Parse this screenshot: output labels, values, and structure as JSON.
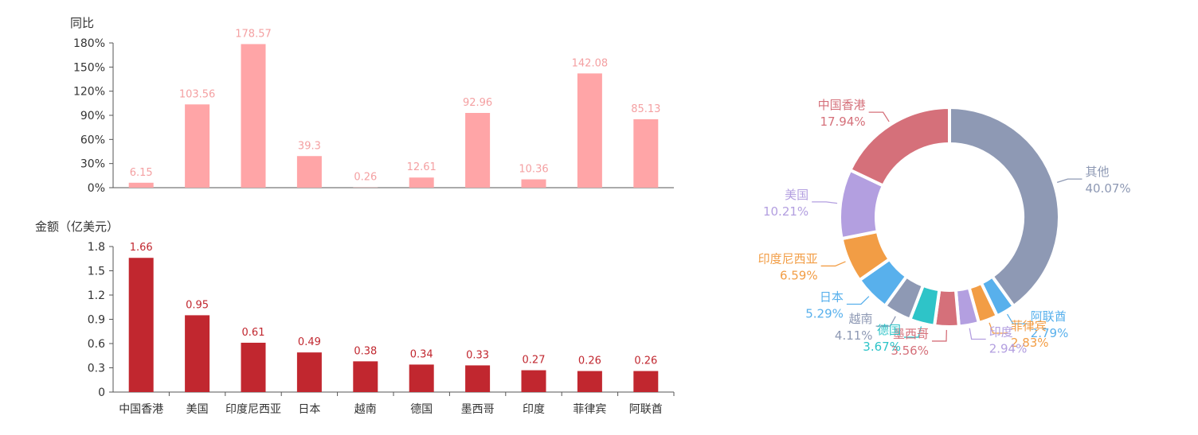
{
  "colors": {
    "yoy_bar": "#FFA5A7",
    "yoy_label": "#F4A0A2",
    "amount_bar": "#C1272F",
    "amount_label": "#C1272F",
    "axis": "#555555",
    "text": "#333333"
  },
  "chart_data": [
    {
      "type": "bar",
      "ylabel": "同比",
      "categories": [
        "中国香港",
        "美国",
        "印度尼西亚",
        "日本",
        "越南",
        "德国",
        "墨西哥",
        "印度",
        "菲律宾",
        "阿联酋"
      ],
      "values": [
        6.15,
        103.56,
        178.57,
        39.3,
        0.26,
        12.61,
        92.96,
        10.36,
        142.08,
        85.13
      ],
      "value_labels": [
        "6.15",
        "103.56",
        "178.57",
        "39.3",
        "0.26",
        "12.61",
        "92.96",
        "10.36",
        "142.08",
        "85.13"
      ],
      "ylim": [
        0,
        180
      ],
      "yticks": [
        0,
        30,
        60,
        90,
        120,
        150,
        180
      ],
      "ytick_labels": [
        "0%",
        "30%",
        "60%",
        "90%",
        "120%",
        "150%",
        "180%"
      ],
      "grid": false
    },
    {
      "type": "bar",
      "ylabel": "金额（亿美元）",
      "categories": [
        "中国香港",
        "美国",
        "印度尼西亚",
        "日本",
        "越南",
        "德国",
        "墨西哥",
        "印度",
        "菲律宾",
        "阿联酋"
      ],
      "values": [
        1.66,
        0.95,
        0.61,
        0.49,
        0.38,
        0.34,
        0.33,
        0.27,
        0.26,
        0.26
      ],
      "value_labels": [
        "1.66",
        "0.95",
        "0.61",
        "0.49",
        "0.38",
        "0.34",
        "0.33",
        "0.27",
        "0.26",
        "0.26"
      ],
      "ylim": [
        0,
        1.8
      ],
      "yticks": [
        0,
        0.3,
        0.6,
        0.9,
        1.2,
        1.5,
        1.8
      ],
      "ytick_labels": [
        "0",
        "0.3",
        "0.6",
        "0.9",
        "1.2",
        "1.5",
        "1.8"
      ],
      "grid": false
    },
    {
      "type": "pie",
      "donut": true,
      "slices": [
        {
          "label": "其他",
          "value": 40.07,
          "pct": "40.07%",
          "color": "#8E99B4"
        },
        {
          "label": "阿联酋",
          "value": 2.79,
          "pct": "2.79%",
          "color": "#58B0EC"
        },
        {
          "label": "菲律宾",
          "value": 2.83,
          "pct": "2.83%",
          "color": "#F29D45"
        },
        {
          "label": "印度",
          "value": 2.94,
          "pct": "2.94%",
          "color": "#B39FE0"
        },
        {
          "label": "墨西哥",
          "value": 3.56,
          "pct": "3.56%",
          "color": "#D5707A"
        },
        {
          "label": "德国",
          "value": 3.67,
          "pct": "3.67%",
          "color": "#2EC4C8"
        },
        {
          "label": "越南",
          "value": 4.11,
          "pct": "4.11%",
          "color": "#8E99B4"
        },
        {
          "label": "日本",
          "value": 5.29,
          "pct": "5.29%",
          "color": "#58B0EC"
        },
        {
          "label": "印度尼西亚",
          "value": 6.59,
          "pct": "6.59%",
          "color": "#F29D45"
        },
        {
          "label": "美国",
          "value": 10.21,
          "pct": "10.21%",
          "color": "#B39FE0"
        },
        {
          "label": "中国香港",
          "value": 17.94,
          "pct": "17.94%",
          "color": "#D5707A"
        }
      ]
    }
  ]
}
